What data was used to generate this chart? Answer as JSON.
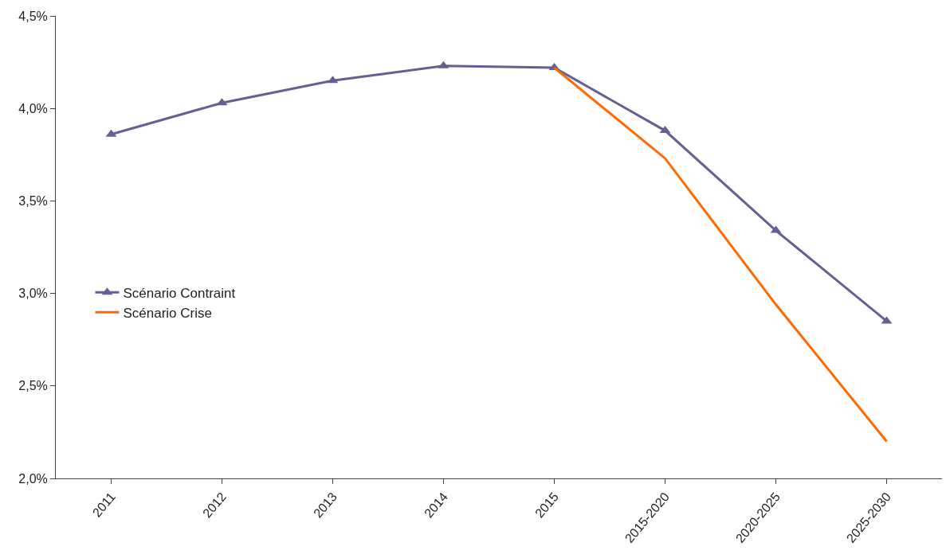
{
  "chart_data": {
    "type": "line",
    "categories": [
      "2011",
      "2012",
      "2013",
      "2014",
      "2015",
      "2015-2020",
      "2020-2025",
      "2025-2030"
    ],
    "series": [
      {
        "name": "Scénario Contraint",
        "color": "#655f94",
        "marker": "triangle",
        "values": [
          3.86,
          4.03,
          4.15,
          4.23,
          4.22,
          3.88,
          3.34,
          2.85
        ]
      },
      {
        "name": "Scénario Crise",
        "color": "#ff6a00",
        "marker": "none",
        "values": [
          null,
          null,
          null,
          null,
          4.22,
          3.73,
          2.94,
          2.2
        ]
      }
    ],
    "ylim": [
      2.0,
      4.5
    ],
    "yticks": [
      {
        "value": 2.0,
        "label": "2,0%"
      },
      {
        "value": 2.5,
        "label": "2,5%"
      },
      {
        "value": 3.0,
        "label": "3,0%"
      },
      {
        "value": 3.5,
        "label": "3,5%"
      },
      {
        "value": 4.0,
        "label": "4,0%"
      },
      {
        "value": 4.5,
        "label": "4,5%"
      }
    ],
    "legend": "left",
    "line_style": "solid"
  }
}
